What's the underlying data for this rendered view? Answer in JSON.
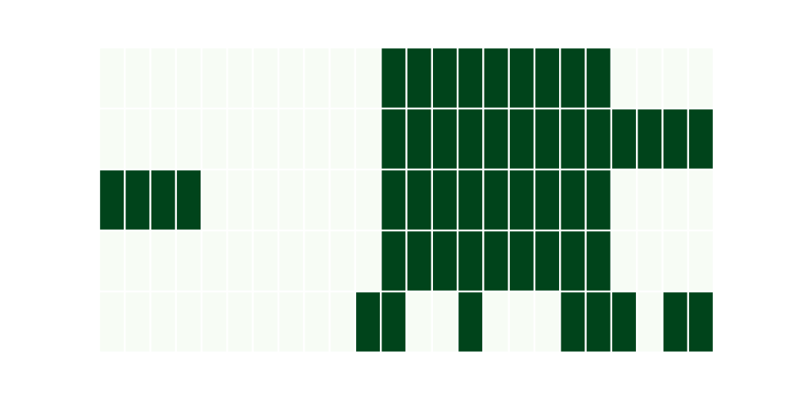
{
  "chart_data": {
    "type": "heatmap",
    "title": "",
    "xlabel": "",
    "ylabel": "",
    "colors": {
      "off": "#f7fcf5",
      "on": "#00441b",
      "gap": "#ffffff",
      "background": "#ffffff"
    },
    "grid": false,
    "values": [
      [
        0,
        0,
        0,
        0,
        0,
        0,
        0,
        0,
        0,
        0,
        0,
        1,
        1,
        1,
        1,
        1,
        1,
        1,
        1,
        1,
        0,
        0,
        0,
        0
      ],
      [
        0,
        0,
        0,
        0,
        0,
        0,
        0,
        0,
        0,
        0,
        0,
        1,
        1,
        1,
        1,
        1,
        1,
        1,
        1,
        1,
        1,
        1,
        1,
        1
      ],
      [
        1,
        1,
        1,
        1,
        0,
        0,
        0,
        0,
        0,
        0,
        0,
        1,
        1,
        1,
        1,
        1,
        1,
        1,
        1,
        1,
        0,
        0,
        0,
        0
      ],
      [
        0,
        0,
        0,
        0,
        0,
        0,
        0,
        0,
        0,
        0,
        0,
        1,
        1,
        1,
        1,
        1,
        1,
        1,
        1,
        1,
        0,
        0,
        0,
        0
      ],
      [
        0,
        0,
        0,
        0,
        0,
        0,
        0,
        0,
        0,
        0,
        1,
        1,
        0,
        0,
        1,
        0,
        0,
        0,
        1,
        1,
        1,
        0,
        1,
        1
      ]
    ]
  }
}
